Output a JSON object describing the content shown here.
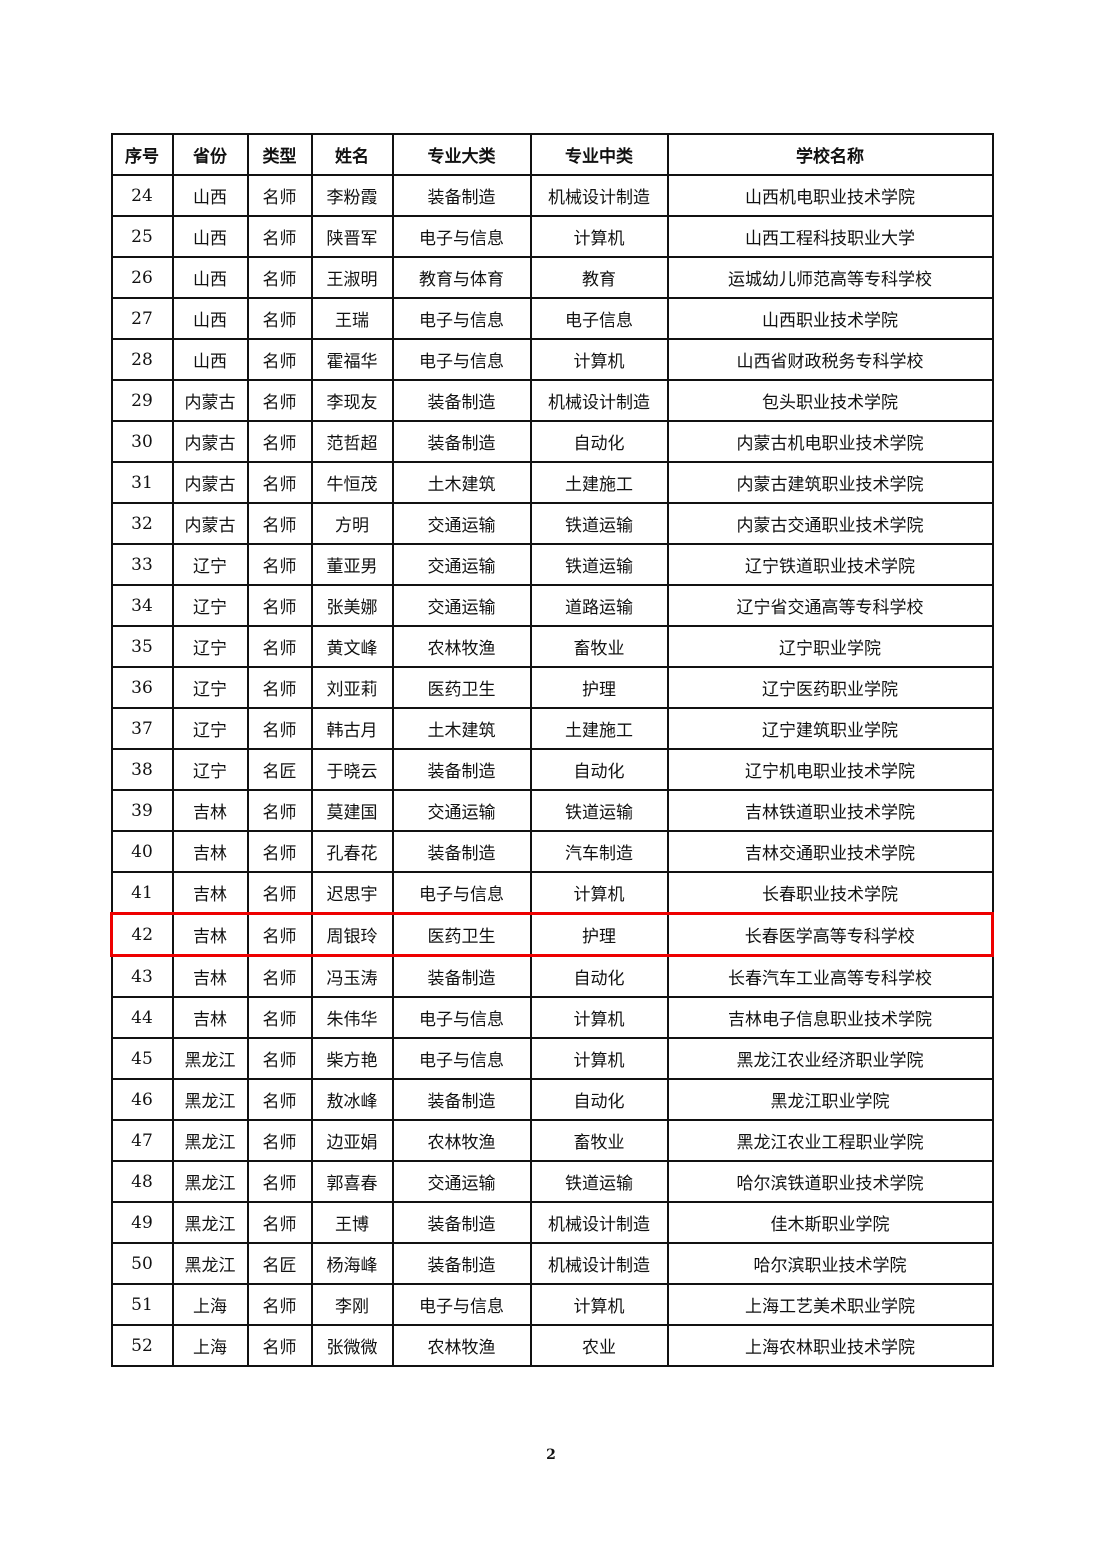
{
  "columns": [
    "序号",
    "省份",
    "类型",
    "姓名",
    "专业大类",
    "专业中类",
    "学校名称"
  ],
  "highlight_color": "#ee0000",
  "highlighted_row": "42",
  "rows": [
    [
      "24",
      "山西",
      "名师",
      "李粉霞",
      "装备制造",
      "机械设计制造",
      "山西机电职业技术学院"
    ],
    [
      "25",
      "山西",
      "名师",
      "陕晋军",
      "电子与信息",
      "计算机",
      "山西工程科技职业大学"
    ],
    [
      "26",
      "山西",
      "名师",
      "王淑明",
      "教育与体育",
      "教育",
      "运城幼儿师范高等专科学校"
    ],
    [
      "27",
      "山西",
      "名师",
      "王瑞",
      "电子与信息",
      "电子信息",
      "山西职业技术学院"
    ],
    [
      "28",
      "山西",
      "名师",
      "霍福华",
      "电子与信息",
      "计算机",
      "山西省财政税务专科学校"
    ],
    [
      "29",
      "内蒙古",
      "名师",
      "李现友",
      "装备制造",
      "机械设计制造",
      "包头职业技术学院"
    ],
    [
      "30",
      "内蒙古",
      "名师",
      "范哲超",
      "装备制造",
      "自动化",
      "内蒙古机电职业技术学院"
    ],
    [
      "31",
      "内蒙古",
      "名师",
      "牛恒茂",
      "土木建筑",
      "土建施工",
      "内蒙古建筑职业技术学院"
    ],
    [
      "32",
      "内蒙古",
      "名师",
      "方明",
      "交通运输",
      "铁道运输",
      "内蒙古交通职业技术学院"
    ],
    [
      "33",
      "辽宁",
      "名师",
      "董亚男",
      "交通运输",
      "铁道运输",
      "辽宁铁道职业技术学院"
    ],
    [
      "34",
      "辽宁",
      "名师",
      "张美娜",
      "交通运输",
      "道路运输",
      "辽宁省交通高等专科学校"
    ],
    [
      "35",
      "辽宁",
      "名师",
      "黄文峰",
      "农林牧渔",
      "畜牧业",
      "辽宁职业学院"
    ],
    [
      "36",
      "辽宁",
      "名师",
      "刘亚莉",
      "医药卫生",
      "护理",
      "辽宁医药职业学院"
    ],
    [
      "37",
      "辽宁",
      "名师",
      "韩古月",
      "土木建筑",
      "土建施工",
      "辽宁建筑职业学院"
    ],
    [
      "38",
      "辽宁",
      "名匠",
      "于晓云",
      "装备制造",
      "自动化",
      "辽宁机电职业技术学院"
    ],
    [
      "39",
      "吉林",
      "名师",
      "莫建国",
      "交通运输",
      "铁道运输",
      "吉林铁道职业技术学院"
    ],
    [
      "40",
      "吉林",
      "名师",
      "孔春花",
      "装备制造",
      "汽车制造",
      "吉林交通职业技术学院"
    ],
    [
      "41",
      "吉林",
      "名师",
      "迟思宇",
      "电子与信息",
      "计算机",
      "长春职业技术学院"
    ],
    [
      "42",
      "吉林",
      "名师",
      "周银玲",
      "医药卫生",
      "护理",
      "长春医学高等专科学校"
    ],
    [
      "43",
      "吉林",
      "名师",
      "冯玉涛",
      "装备制造",
      "自动化",
      "长春汽车工业高等专科学校"
    ],
    [
      "44",
      "吉林",
      "名师",
      "朱伟华",
      "电子与信息",
      "计算机",
      "吉林电子信息职业技术学院"
    ],
    [
      "45",
      "黑龙江",
      "名师",
      "柴方艳",
      "电子与信息",
      "计算机",
      "黑龙江农业经济职业学院"
    ],
    [
      "46",
      "黑龙江",
      "名师",
      "敖冰峰",
      "装备制造",
      "自动化",
      "黑龙江职业学院"
    ],
    [
      "47",
      "黑龙江",
      "名师",
      "边亚娟",
      "农林牧渔",
      "畜牧业",
      "黑龙江农业工程职业学院"
    ],
    [
      "48",
      "黑龙江",
      "名师",
      "郭喜春",
      "交通运输",
      "铁道运输",
      "哈尔滨铁道职业技术学院"
    ],
    [
      "49",
      "黑龙江",
      "名师",
      "王博",
      "装备制造",
      "机械设计制造",
      "佳木斯职业学院"
    ],
    [
      "50",
      "黑龙江",
      "名匠",
      "杨海峰",
      "装备制造",
      "机械设计制造",
      "哈尔滨职业技术学院"
    ],
    [
      "51",
      "上海",
      "名师",
      "李刚",
      "电子与信息",
      "计算机",
      "上海工艺美术职业学院"
    ],
    [
      "52",
      "上海",
      "名师",
      "张微微",
      "农林牧渔",
      "农业",
      "上海农林职业技术学院"
    ]
  ],
  "page_number": "2"
}
